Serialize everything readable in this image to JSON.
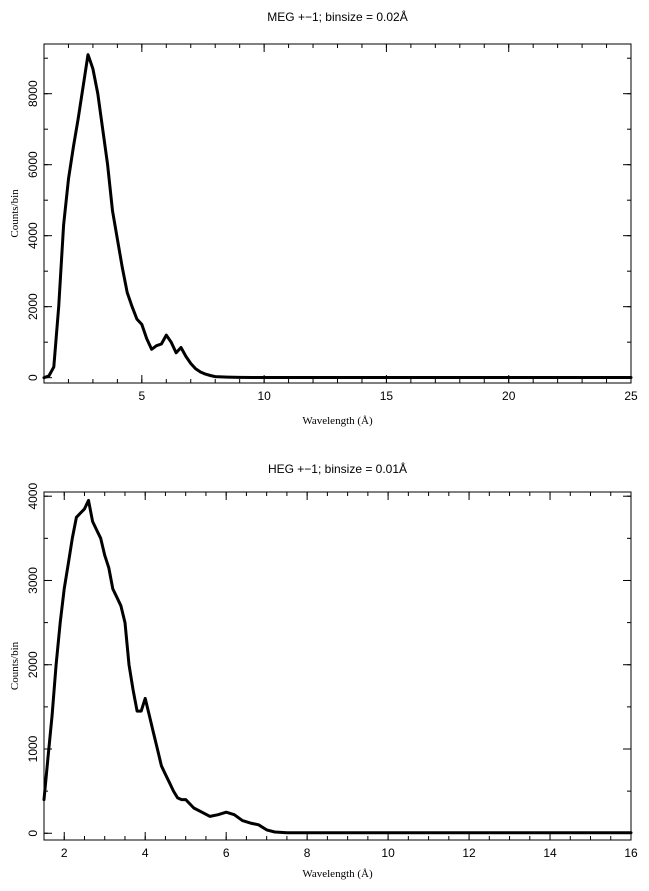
{
  "chart_data": [
    {
      "type": "line",
      "title": "MEG +−1; binsize = 0.02Å",
      "xlabel": "Wavelength (Å)",
      "ylabel": "Counts/bin",
      "xlim": [
        1.0,
        25.0
      ],
      "ylim": [
        -150,
        9400
      ],
      "x_major_ticks": [
        5,
        10,
        15,
        20,
        25
      ],
      "x_tick_labels": [
        "5",
        "10",
        "15",
        "20",
        "25"
      ],
      "x_minor_step": 1,
      "y_major_ticks": [
        0,
        2000,
        4000,
        6000,
        8000
      ],
      "y_tick_labels": [
        "0",
        "2000",
        "4000",
        "6000",
        "8000"
      ],
      "y_minor_step": 1000,
      "series": [
        {
          "x": [
            1.0,
            1.2,
            1.4,
            1.6,
            1.8,
            2.0,
            2.2,
            2.4,
            2.6,
            2.8,
            2.9,
            3.0,
            3.2,
            3.4,
            3.6,
            3.8,
            4.0,
            4.2,
            4.4,
            4.6,
            4.8,
            5.0,
            5.2,
            5.4,
            5.6,
            5.8,
            6.0,
            6.2,
            6.4,
            6.6,
            6.8,
            7.0,
            7.2,
            7.4,
            7.6,
            7.8,
            8.0,
            8.5,
            9.0,
            9.5,
            10.0,
            12.0,
            15.0,
            20.0,
            25.0
          ],
          "y": [
            0,
            50,
            300,
            2000,
            4300,
            5600,
            6500,
            7300,
            8200,
            9100,
            8900,
            8700,
            8000,
            7000,
            6000,
            4700,
            3900,
            3100,
            2400,
            2000,
            1650,
            1500,
            1100,
            800,
            900,
            950,
            1200,
            1000,
            700,
            850,
            600,
            400,
            250,
            160,
            100,
            60,
            30,
            15,
            8,
            5,
            5,
            5,
            5,
            5,
            5
          ]
        }
      ]
    },
    {
      "type": "line",
      "title": "HEG +−1; binsize = 0.01Å",
      "xlabel": "Wavelength (Å)",
      "ylabel": "Counts/bin",
      "xlim": [
        1.5,
        16.0
      ],
      "ylim": [
        -80,
        4050
      ],
      "x_major_ticks": [
        2,
        4,
        6,
        8,
        10,
        12,
        14,
        16
      ],
      "x_tick_labels": [
        "2",
        "4",
        "6",
        "8",
        "10",
        "12",
        "14",
        "16"
      ],
      "x_minor_step": 0.5,
      "y_major_ticks": [
        0,
        1000,
        2000,
        3000,
        4000
      ],
      "y_tick_labels": [
        "0",
        "1000",
        "2000",
        "3000",
        "4000"
      ],
      "y_minor_step": 500,
      "series": [
        {
          "x": [
            1.5,
            1.6,
            1.7,
            1.8,
            1.9,
            2.0,
            2.1,
            2.2,
            2.3,
            2.4,
            2.5,
            2.6,
            2.7,
            2.8,
            2.9,
            3.0,
            3.1,
            3.2,
            3.3,
            3.4,
            3.5,
            3.6,
            3.7,
            3.8,
            3.9,
            4.0,
            4.1,
            4.2,
            4.3,
            4.4,
            4.5,
            4.6,
            4.7,
            4.8,
            4.9,
            5.0,
            5.2,
            5.4,
            5.6,
            5.8,
            6.0,
            6.2,
            6.4,
            6.6,
            6.8,
            7.0,
            7.2,
            7.5,
            8.0,
            10.0,
            12.0,
            14.0,
            16.0
          ],
          "y": [
            400,
            900,
            1400,
            2000,
            2500,
            2900,
            3200,
            3500,
            3750,
            3800,
            3850,
            3950,
            3700,
            3600,
            3500,
            3300,
            3150,
            2900,
            2800,
            2700,
            2500,
            2000,
            1700,
            1450,
            1450,
            1600,
            1400,
            1200,
            1000,
            800,
            700,
            600,
            500,
            420,
            400,
            400,
            300,
            250,
            200,
            220,
            250,
            220,
            150,
            120,
            100,
            40,
            15,
            5,
            5,
            5,
            5,
            5,
            5
          ]
        }
      ]
    }
  ]
}
